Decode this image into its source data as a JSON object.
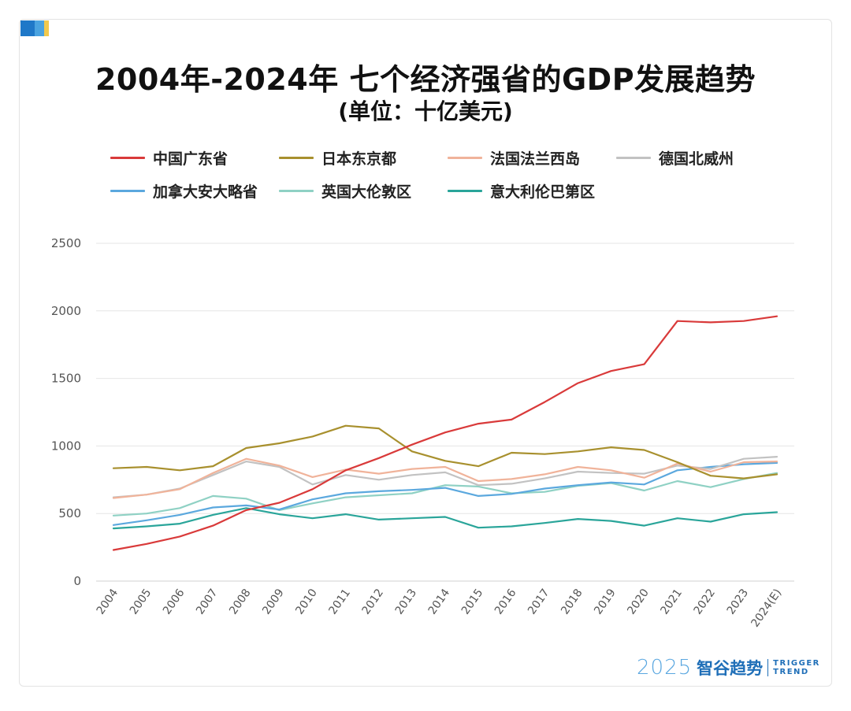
{
  "header": {
    "title": "2004年-2024年 七个经济强省的GDP发展趋势",
    "subtitle": "(单位：十亿美元)"
  },
  "colors": {
    "corner": [
      "#1f78c8",
      "#4aa3e0",
      "#f2c94c"
    ]
  },
  "chart_data": {
    "type": "line",
    "x": [
      "2004",
      "2005",
      "2006",
      "2007",
      "2008",
      "2009",
      "2010",
      "2011",
      "2012",
      "2013",
      "2014",
      "2015",
      "2016",
      "2017",
      "2018",
      "2019",
      "2020",
      "2021",
      "2022",
      "2023",
      "2024(E)"
    ],
    "ylim": [
      0,
      2500
    ],
    "yticks": [
      "0",
      "500",
      "1000",
      "1500",
      "2000",
      "2500"
    ],
    "grid": true,
    "legend_position": "top",
    "series": [
      {
        "name": "中国广东省",
        "color": "#d93a3a",
        "values": [
          230,
          275,
          330,
          410,
          525,
          580,
          680,
          820,
          910,
          1010,
          1100,
          1165,
          1195,
          1325,
          1465,
          1555,
          1605,
          1925,
          1915,
          1925,
          1960
        ]
      },
      {
        "name": "日本东京都",
        "color": "#a8902e",
        "values": [
          835,
          845,
          820,
          850,
          985,
          1020,
          1070,
          1150,
          1130,
          960,
          890,
          850,
          950,
          940,
          960,
          990,
          970,
          880,
          780,
          760,
          790
        ]
      },
      {
        "name": "法国法兰西岛",
        "color": "#f0b39a",
        "values": [
          615,
          640,
          680,
          800,
          905,
          855,
          770,
          825,
          795,
          830,
          845,
          740,
          755,
          790,
          845,
          820,
          765,
          870,
          810,
          880,
          885
        ]
      },
      {
        "name": "德国北威州",
        "color": "#c2c2c2",
        "values": [
          620,
          640,
          685,
          785,
          885,
          845,
          715,
          785,
          750,
          785,
          805,
          710,
          720,
          760,
          810,
          800,
          795,
          855,
          830,
          905,
          920
        ]
      },
      {
        "name": "加拿大安大略省",
        "color": "#5ba8de",
        "values": [
          415,
          450,
          490,
          545,
          560,
          530,
          605,
          650,
          665,
          675,
          690,
          630,
          645,
          685,
          710,
          730,
          715,
          820,
          845,
          865,
          875
        ]
      },
      {
        "name": "英国大伦敦区",
        "color": "#8fd1c4",
        "values": [
          485,
          500,
          540,
          630,
          610,
          525,
          575,
          620,
          635,
          650,
          710,
          700,
          650,
          660,
          705,
          725,
          670,
          740,
          695,
          755,
          800
        ]
      },
      {
        "name": "意大利伦巴第区",
        "color": "#2aa59a",
        "values": [
          390,
          405,
          425,
          490,
          540,
          495,
          465,
          495,
          455,
          465,
          475,
          395,
          405,
          430,
          460,
          445,
          410,
          465,
          440,
          495,
          510
        ]
      }
    ]
  },
  "watermark": {
    "year": "2025",
    "name": "智谷趋势",
    "en_line1": "TRIGGER",
    "en_line2": "TREND"
  }
}
